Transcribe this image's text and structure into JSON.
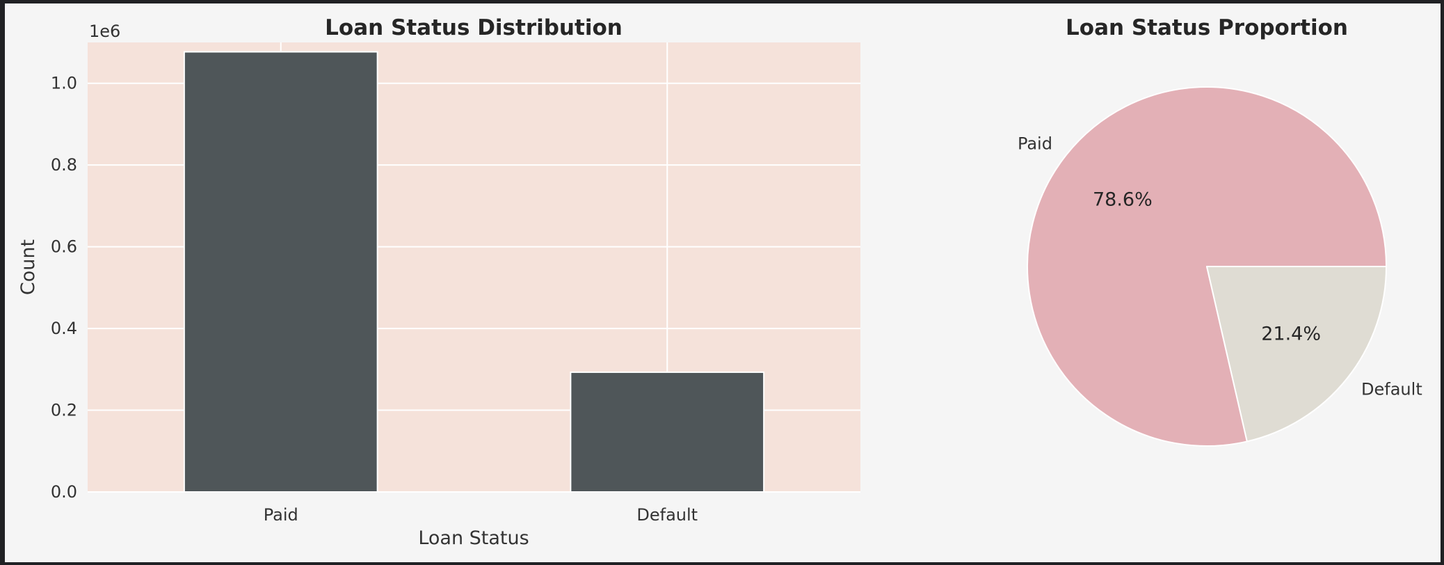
{
  "chart_data": [
    {
      "type": "bar",
      "title": "Loan Status Distribution",
      "xlabel": "Loan Status",
      "ylabel": "Count",
      "offset_label": "1e6",
      "categories": [
        "Paid",
        "Default"
      ],
      "values": [
        1077000,
        293000
      ],
      "ylim": [
        0,
        1100000
      ],
      "yticks": [
        0,
        200000,
        400000,
        600000,
        800000,
        1000000
      ],
      "ytick_labels": [
        "0.0",
        "0.2",
        "0.4",
        "0.6",
        "0.8",
        "1.0"
      ],
      "grid": true,
      "colors": {
        "bar": "#4f5659",
        "plot_bg": "#f5e2da",
        "grid": "#ffffff"
      }
    },
    {
      "type": "pie",
      "title": "Loan Status Proportion",
      "labels": [
        "Paid",
        "Default"
      ],
      "values": [
        78.6,
        21.4
      ],
      "percent_labels": [
        "78.6%",
        "21.4%"
      ],
      "colors": [
        "#e3b0b6",
        "#dfdcd3"
      ]
    }
  ]
}
